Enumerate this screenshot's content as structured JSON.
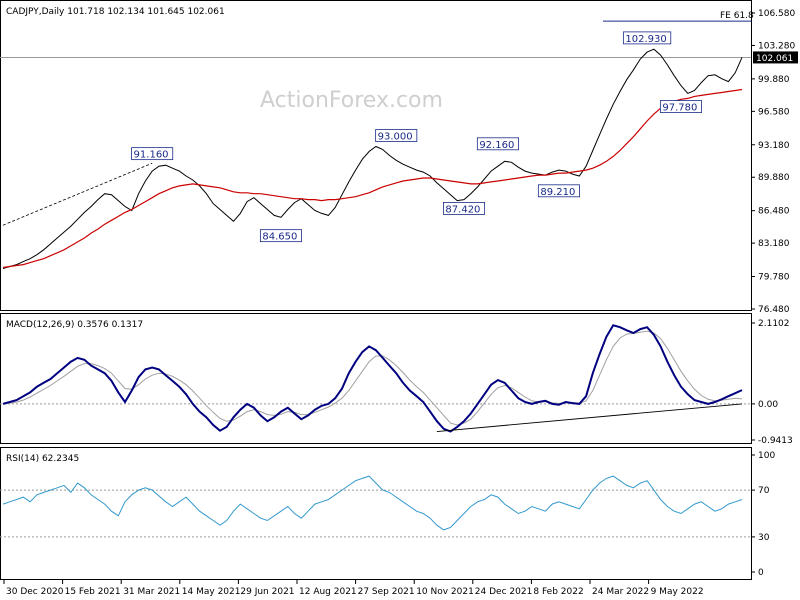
{
  "chart_data": [
    {
      "type": "line",
      "title": "CADJPY,Daily  101.718 102.134 101.645 102.061",
      "watermark": "ActionForex.com",
      "ohlc": {
        "open": 101.718,
        "high": 102.134,
        "low": 101.645,
        "close": 102.061
      },
      "last_price_label": "102.061",
      "fe_label": "FE 61.8",
      "fe_level": 105.75,
      "y_ticks": [
        "106.580",
        "103.280",
        "99.880",
        "96.580",
        "93.180",
        "89.880",
        "86.480",
        "83.180",
        "79.780",
        "76.480"
      ],
      "ylim": [
        76.48,
        106.58
      ],
      "x_ticks": [
        "30 Dec 2020",
        "15 Feb 2021",
        "31 Mar 2021",
        "14 May 2021",
        "29 Jun 2021",
        "12 Aug 2021",
        "27 Sep 2021",
        "10 Nov 2021",
        "24 Dec 2021",
        "8 Feb 2022",
        "24 Mar 2022",
        "9 May 2022"
      ],
      "callouts": [
        {
          "label": "91.160",
          "idx": 22,
          "value": 91.16
        },
        {
          "label": "84.650",
          "idx": 41,
          "value": 84.65
        },
        {
          "label": "93.000",
          "idx": 58,
          "value": 93.0
        },
        {
          "label": "87.420",
          "idx": 68,
          "value": 87.42
        },
        {
          "label": "92.160",
          "idx": 73,
          "value": 92.16
        },
        {
          "label": "89.210",
          "idx": 82,
          "value": 89.21
        },
        {
          "label": "102.930",
          "idx": 95,
          "value": 102.93
        },
        {
          "label": "97.780",
          "idx": 100,
          "value": 97.78
        }
      ],
      "series": [
        {
          "name": "",
          "color": "#000000",
          "values": [
            80.6,
            80.8,
            81.0,
            81.3,
            81.6,
            82.0,
            82.5,
            83.1,
            83.7,
            84.3,
            84.9,
            85.6,
            86.3,
            86.9,
            87.6,
            88.2,
            88.1,
            87.5,
            86.9,
            86.5,
            88.2,
            89.5,
            90.5,
            91.0,
            91.1,
            90.8,
            90.5,
            90.0,
            89.6,
            89.0,
            88.2,
            87.2,
            86.6,
            86.0,
            85.4,
            86.2,
            87.4,
            87.8,
            87.2,
            86.6,
            86.0,
            85.8,
            86.6,
            87.3,
            87.7,
            87.1,
            86.5,
            86.2,
            86.0,
            86.8,
            88.1,
            89.4,
            90.6,
            91.7,
            92.5,
            93.0,
            92.7,
            92.1,
            91.6,
            91.2,
            90.9,
            90.6,
            90.4,
            90.0,
            89.3,
            88.7,
            88.1,
            87.5,
            87.6,
            88.2,
            88.9,
            89.7,
            90.5,
            91.0,
            91.5,
            91.4,
            90.9,
            90.5,
            90.3,
            90.2,
            90.1,
            90.4,
            90.6,
            90.5,
            90.2,
            90.0,
            91.0,
            92.6,
            94.2,
            95.8,
            97.3,
            98.6,
            99.8,
            100.8,
            101.9,
            102.6,
            102.9,
            102.3,
            101.3,
            100.2,
            99.2,
            98.4,
            98.7,
            99.5,
            100.2,
            100.3,
            99.9,
            99.6,
            100.5,
            102.06
          ]
        },
        {
          "name": "",
          "color": "#cc0000",
          "values": [
            80.7,
            80.8,
            80.9,
            81.0,
            81.2,
            81.4,
            81.6,
            81.9,
            82.2,
            82.5,
            82.9,
            83.3,
            83.7,
            84.2,
            84.6,
            85.1,
            85.5,
            85.9,
            86.3,
            86.6,
            87.0,
            87.4,
            87.8,
            88.2,
            88.5,
            88.8,
            89.0,
            89.1,
            89.2,
            89.1,
            89.0,
            88.9,
            88.8,
            88.6,
            88.4,
            88.3,
            88.3,
            88.2,
            88.2,
            88.1,
            88.0,
            87.9,
            87.8,
            87.7,
            87.7,
            87.6,
            87.6,
            87.5,
            87.6,
            87.6,
            87.7,
            87.8,
            87.9,
            88.1,
            88.3,
            88.6,
            88.9,
            89.1,
            89.3,
            89.5,
            89.6,
            89.7,
            89.8,
            89.8,
            89.7,
            89.6,
            89.5,
            89.4,
            89.3,
            89.2,
            89.2,
            89.3,
            89.4,
            89.5,
            89.6,
            89.7,
            89.8,
            89.9,
            90.0,
            90.1,
            90.1,
            90.2,
            90.3,
            90.3,
            90.4,
            90.5,
            90.6,
            90.8,
            91.1,
            91.5,
            92.0,
            92.6,
            93.3,
            94.0,
            94.8,
            95.6,
            96.3,
            96.9,
            97.3,
            97.6,
            97.8,
            97.9,
            98.1,
            98.2,
            98.3,
            98.4,
            98.5,
            98.6,
            98.7,
            98.8
          ]
        }
      ]
    },
    {
      "type": "line",
      "title": "MACD(12,26,9) 0.3576 0.1317",
      "y_ticks": [
        "2.1102",
        "0.00",
        "-0.9413"
      ],
      "ylim": [
        -0.9413,
        2.1102
      ],
      "last_value_label": "0.00",
      "series": [
        {
          "name": "",
          "color": "#000080",
          "values": [
            0.0,
            0.05,
            0.1,
            0.2,
            0.3,
            0.45,
            0.55,
            0.65,
            0.8,
            0.95,
            1.1,
            1.2,
            1.15,
            1.0,
            0.9,
            0.8,
            0.6,
            0.3,
            0.05,
            0.35,
            0.7,
            0.9,
            0.95,
            0.9,
            0.75,
            0.6,
            0.45,
            0.25,
            0.0,
            -0.2,
            -0.35,
            -0.55,
            -0.7,
            -0.6,
            -0.35,
            -0.15,
            0.0,
            -0.1,
            -0.3,
            -0.45,
            -0.35,
            -0.2,
            -0.1,
            -0.25,
            -0.4,
            -0.3,
            -0.15,
            -0.05,
            0.0,
            0.15,
            0.4,
            0.8,
            1.1,
            1.35,
            1.5,
            1.4,
            1.2,
            1.0,
            0.8,
            0.55,
            0.35,
            0.2,
            0.05,
            -0.2,
            -0.45,
            -0.65,
            -0.72,
            -0.6,
            -0.45,
            -0.25,
            0.0,
            0.25,
            0.5,
            0.62,
            0.55,
            0.35,
            0.15,
            0.05,
            0.0,
            0.05,
            0.08,
            0.0,
            -0.02,
            0.05,
            0.02,
            0.0,
            0.2,
            0.8,
            1.3,
            1.75,
            2.05,
            2.0,
            1.92,
            1.85,
            1.95,
            2.0,
            1.8,
            1.5,
            1.1,
            0.75,
            0.45,
            0.25,
            0.1,
            0.05,
            0.0,
            0.05,
            0.12,
            0.2,
            0.28,
            0.36
          ]
        },
        {
          "name": "",
          "color": "#a0a0a0",
          "values": [
            0.0,
            0.02,
            0.05,
            0.1,
            0.18,
            0.28,
            0.38,
            0.48,
            0.6,
            0.72,
            0.85,
            0.98,
            1.05,
            1.05,
            1.0,
            0.92,
            0.8,
            0.6,
            0.4,
            0.38,
            0.5,
            0.65,
            0.75,
            0.8,
            0.78,
            0.72,
            0.62,
            0.5,
            0.34,
            0.15,
            -0.05,
            -0.22,
            -0.38,
            -0.45,
            -0.42,
            -0.32,
            -0.2,
            -0.15,
            -0.2,
            -0.28,
            -0.3,
            -0.27,
            -0.2,
            -0.22,
            -0.28,
            -0.28,
            -0.22,
            -0.15,
            -0.08,
            0.02,
            0.15,
            0.35,
            0.6,
            0.85,
            1.1,
            1.25,
            1.25,
            1.15,
            1.0,
            0.82,
            0.62,
            0.45,
            0.3,
            0.1,
            -0.1,
            -0.3,
            -0.5,
            -0.55,
            -0.5,
            -0.4,
            -0.2,
            0.02,
            0.25,
            0.42,
            0.48,
            0.42,
            0.3,
            0.18,
            0.08,
            0.05,
            0.06,
            0.03,
            0.01,
            0.03,
            0.03,
            0.02,
            0.08,
            0.35,
            0.75,
            1.15,
            1.5,
            1.72,
            1.82,
            1.84,
            1.87,
            1.9,
            1.85,
            1.7,
            1.45,
            1.15,
            0.85,
            0.6,
            0.38,
            0.22,
            0.12,
            0.08,
            0.1,
            0.12,
            0.15,
            0.13
          ]
        }
      ]
    },
    {
      "type": "line",
      "title": "RSI(14) 62.2345",
      "y_ticks": [
        "100",
        "70",
        "30",
        "0"
      ],
      "ylim": [
        0,
        100
      ],
      "series": [
        {
          "name": "",
          "color": "#3399cc",
          "values": [
            58,
            60,
            62,
            64,
            60,
            66,
            68,
            70,
            72,
            74,
            68,
            76,
            72,
            66,
            62,
            58,
            52,
            48,
            60,
            66,
            70,
            72,
            70,
            65,
            60,
            56,
            60,
            64,
            58,
            52,
            48,
            44,
            40,
            44,
            52,
            58,
            54,
            50,
            46,
            44,
            48,
            52,
            56,
            50,
            46,
            52,
            58,
            60,
            62,
            66,
            70,
            74,
            78,
            80,
            82,
            76,
            70,
            68,
            64,
            60,
            56,
            52,
            50,
            46,
            40,
            36,
            38,
            44,
            50,
            56,
            60,
            62,
            66,
            64,
            58,
            54,
            50,
            52,
            56,
            54,
            52,
            58,
            60,
            58,
            56,
            54,
            62,
            70,
            76,
            80,
            82,
            78,
            74,
            72,
            76,
            78,
            70,
            62,
            56,
            52,
            50,
            54,
            58,
            60,
            56,
            52,
            54,
            58,
            60,
            62
          ]
        }
      ]
    }
  ]
}
